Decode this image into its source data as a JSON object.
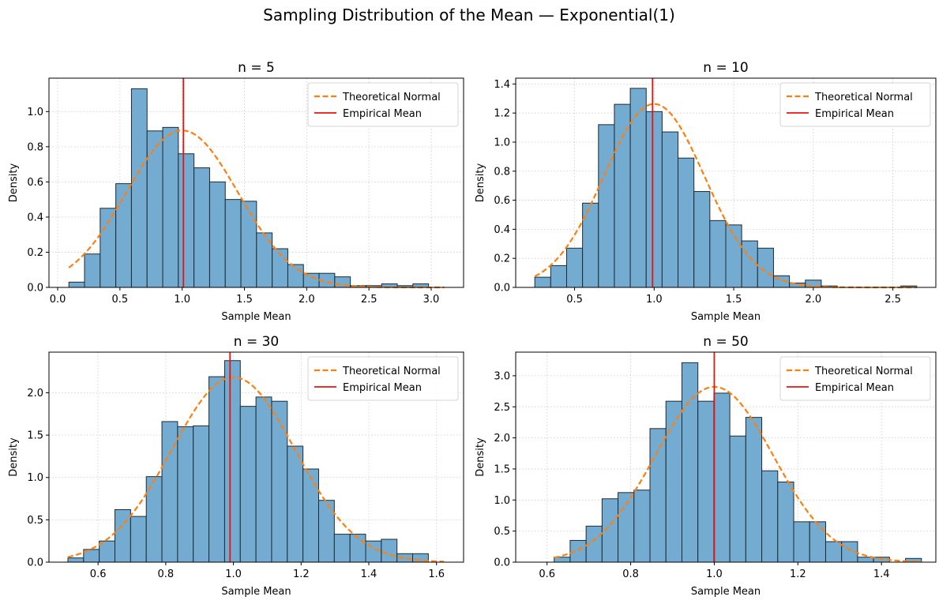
{
  "figure": {
    "title": "Sampling Distribution of the Mean — Exponential(1)"
  },
  "colors": {
    "bar": "#74acd1",
    "bar_edge": "#1e2a33",
    "normal": "#ff7f0e",
    "mean": "#e8130f",
    "grid": "#cccccc"
  },
  "legend": {
    "normal_label": "Theoretical Normal",
    "mean_label": "Empirical Mean",
    "placement": "upper right"
  },
  "chart_data": [
    {
      "type": "bar",
      "title": "n = 5",
      "xlabel": "Sample Mean",
      "ylabel": "Density",
      "xlim": [
        -0.07,
        3.26
      ],
      "ylim": [
        0,
        1.19
      ],
      "xticks": [
        0.0,
        0.5,
        1.0,
        1.5,
        2.0,
        2.5,
        3.0
      ],
      "xtick_labels": [
        "0.0",
        "0.5",
        "1.0",
        "1.5",
        "2.0",
        "2.5",
        "3.0"
      ],
      "yticks": [
        0.0,
        0.2,
        0.4,
        0.6,
        0.8,
        1.0
      ],
      "ytick_labels": [
        "0.0",
        "0.2",
        "0.4",
        "0.6",
        "0.8",
        "1.0"
      ],
      "bin_start": 0.09,
      "bin_width": 0.1256,
      "values": [
        0.03,
        0.19,
        0.45,
        0.59,
        1.13,
        0.89,
        0.91,
        0.76,
        0.68,
        0.6,
        0.5,
        0.49,
        0.31,
        0.22,
        0.13,
        0.08,
        0.08,
        0.06,
        0.01,
        0.01,
        0.02,
        0.01,
        0.02,
        0.0
      ],
      "normal_mu": 1.0,
      "normal_sigma": 0.447,
      "empirical_mean": 1.01
    },
    {
      "type": "bar",
      "title": "n = 10",
      "xlabel": "Sample Mean",
      "ylabel": "Density",
      "xlim": [
        0.13,
        2.77
      ],
      "ylim": [
        0,
        1.44
      ],
      "xticks": [
        0.5,
        1.0,
        1.5,
        2.0,
        2.5
      ],
      "xtick_labels": [
        "0.5",
        "1.0",
        "1.5",
        "2.0",
        "2.5"
      ],
      "yticks": [
        0.0,
        0.2,
        0.4,
        0.6,
        0.8,
        1.0,
        1.2,
        1.4
      ],
      "ytick_labels": [
        "0.0",
        "0.2",
        "0.4",
        "0.6",
        "0.8",
        "1.0",
        "1.2",
        "1.4"
      ],
      "bin_start": 0.25,
      "bin_width": 0.1,
      "values": [
        0.07,
        0.15,
        0.27,
        0.58,
        1.12,
        1.26,
        1.37,
        1.21,
        1.07,
        0.89,
        0.66,
        0.46,
        0.43,
        0.32,
        0.27,
        0.08,
        0.03,
        0.05,
        0.01,
        0.0,
        0.0,
        0.0,
        0.0,
        0.01
      ],
      "normal_mu": 1.0,
      "normal_sigma": 0.316,
      "empirical_mean": 0.99
    },
    {
      "type": "bar",
      "title": "n = 30",
      "xlabel": "Sample Mean",
      "ylabel": "Density",
      "xlim": [
        0.455,
        1.68
      ],
      "ylim": [
        0,
        2.48
      ],
      "xticks": [
        0.6,
        0.8,
        1.0,
        1.2,
        1.4,
        1.6
      ],
      "xtick_labels": [
        "0.6",
        "0.8",
        "1.0",
        "1.2",
        "1.4",
        "1.6"
      ],
      "yticks": [
        0.0,
        0.5,
        1.0,
        1.5,
        2.0
      ],
      "ytick_labels": [
        "0.0",
        "0.5",
        "1.0",
        "1.5",
        "2.0"
      ],
      "bin_start": 0.511,
      "bin_width": 0.0463,
      "values": [
        0.05,
        0.15,
        0.25,
        0.62,
        0.54,
        1.01,
        1.66,
        1.6,
        1.61,
        2.19,
        2.38,
        1.84,
        1.95,
        1.9,
        1.37,
        1.1,
        0.73,
        0.33,
        0.33,
        0.25,
        0.27,
        0.1,
        0.1,
        0.0
      ],
      "normal_mu": 1.0,
      "normal_sigma": 0.1826,
      "empirical_mean": 0.99
    },
    {
      "type": "bar",
      "title": "n = 50",
      "xlabel": "Sample Mean",
      "ylabel": "Density",
      "xlim": [
        0.525,
        1.53
      ],
      "ylim": [
        0,
        3.38
      ],
      "xticks": [
        0.6,
        0.8,
        1.0,
        1.2,
        1.4
      ],
      "xtick_labels": [
        "0.6",
        "0.8",
        "1.0",
        "1.2",
        "1.4"
      ],
      "yticks": [
        0.0,
        0.5,
        1.0,
        1.5,
        2.0,
        2.5,
        3.0
      ],
      "ytick_labels": [
        "0.0",
        "0.5",
        "1.0",
        "1.5",
        "2.0",
        "2.5",
        "3.0"
      ],
      "bin_start": 0.617,
      "bin_width": 0.0382,
      "values": [
        0.08,
        0.35,
        0.58,
        1.02,
        1.12,
        1.16,
        2.15,
        2.59,
        3.21,
        2.59,
        2.72,
        2.03,
        2.33,
        1.47,
        1.29,
        0.65,
        0.65,
        0.33,
        0.33,
        0.08,
        0.08,
        0.0,
        0.06
      ],
      "normal_mu": 1.0,
      "normal_sigma": 0.1414,
      "empirical_mean": 1.0
    }
  ]
}
